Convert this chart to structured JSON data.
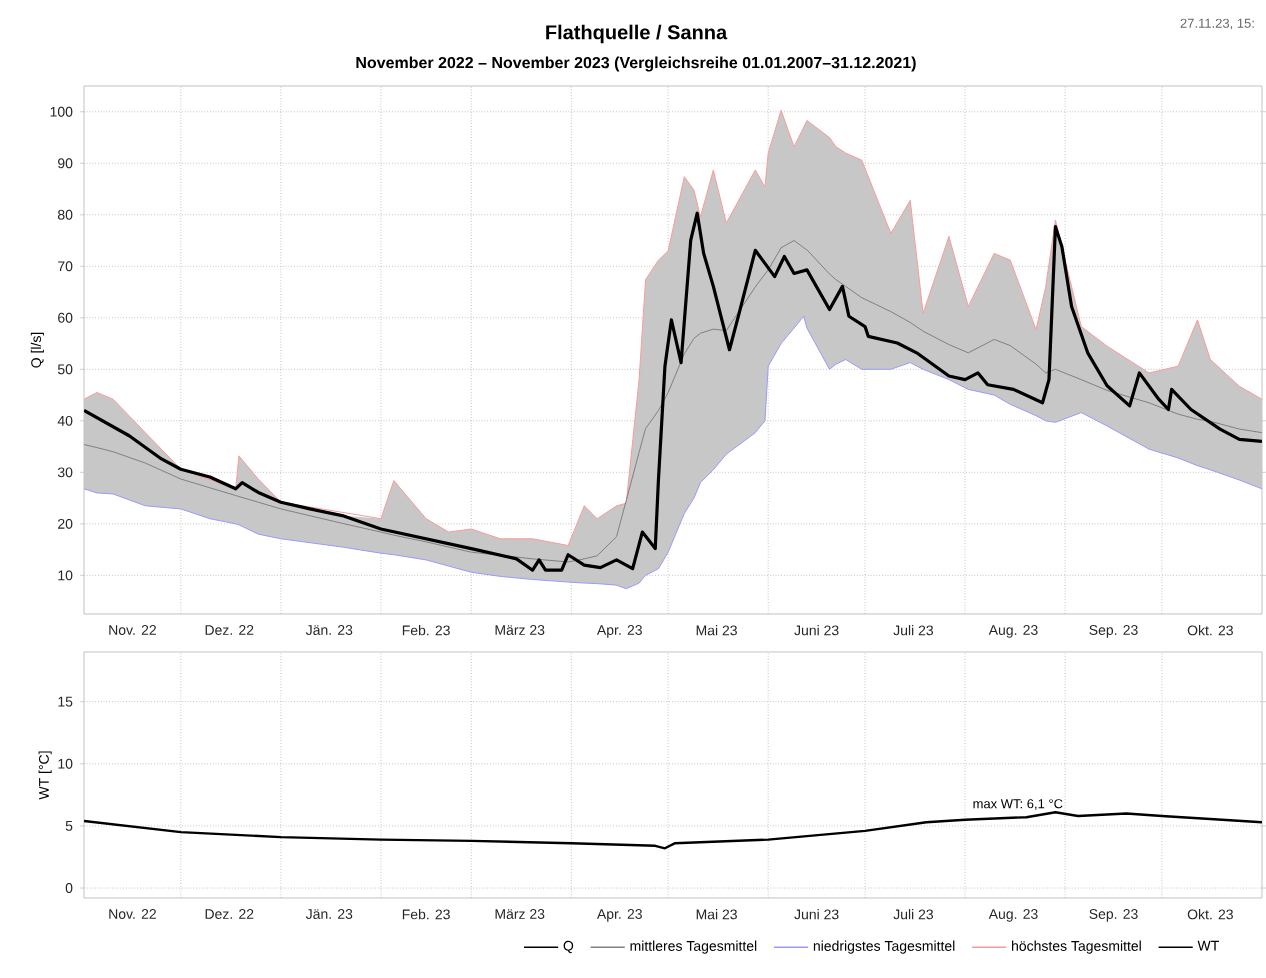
{
  "chart_data": [
    {
      "type": "line",
      "title": "Flathquelle / Sanna",
      "subtitle": "November 2022 – November 2023 (Vergleichsreihe 01.01.2007–31.12.2021)",
      "ylabel": "Q [l/s]",
      "annotations": [
        "27.11.23, 15:"
      ],
      "xlim": [
        "2022-11-01",
        "2023-11-01"
      ],
      "xticks": [
        {
          "value": "2022-11-16",
          "label": "Nov. 22"
        },
        {
          "value": "2022-12-01",
          "label": null
        },
        {
          "value": "2022-12-16",
          "label": "Dez. 22"
        },
        {
          "value": "2023-01-01",
          "label": null
        },
        {
          "value": "2023-01-16",
          "label": "Jän. 23"
        },
        {
          "value": "2023-02-01",
          "label": null
        },
        {
          "value": "2023-02-15",
          "label": "Feb. 23"
        },
        {
          "value": "2023-03-01",
          "label": null
        },
        {
          "value": "2023-03-16",
          "label": "März 23"
        },
        {
          "value": "2023-04-01",
          "label": null
        },
        {
          "value": "2023-04-16",
          "label": "Apr. 23"
        },
        {
          "value": "2023-05-01",
          "label": null
        },
        {
          "value": "2023-05-16",
          "label": "Mai 23"
        },
        {
          "value": "2023-06-01",
          "label": null
        },
        {
          "value": "2023-06-16",
          "label": "Juni 23"
        },
        {
          "value": "2023-07-01",
          "label": null
        },
        {
          "value": "2023-07-16",
          "label": "Juli 23"
        },
        {
          "value": "2023-08-01",
          "label": null
        },
        {
          "value": "2023-08-16",
          "label": "Aug. 23"
        },
        {
          "value": "2023-09-01",
          "label": null
        },
        {
          "value": "2023-09-16",
          "label": "Sep. 23"
        },
        {
          "value": "2023-10-01",
          "label": null
        },
        {
          "value": "2023-10-16",
          "label": "Okt. 23"
        }
      ],
      "ylim": [
        2.5,
        105
      ],
      "yticks": [
        10,
        20,
        30,
        40,
        50,
        60,
        70,
        80,
        90,
        100
      ],
      "grid": true,
      "legend": "bottom",
      "series": [
        {
          "name": "Q",
          "color": "#000000",
          "x": [
            "2022-11-01",
            "2022-11-15",
            "2022-11-25",
            "2022-12-01",
            "2022-12-10",
            "2022-12-18",
            "2022-12-20",
            "2022-12-25",
            "2023-01-01",
            "2023-01-10",
            "2023-01-20",
            "2023-02-01",
            "2023-02-15",
            "2023-03-01",
            "2023-03-15",
            "2023-03-20",
            "2023-03-22",
            "2023-03-24",
            "2023-03-29",
            "2023-03-31",
            "2023-04-05",
            "2023-04-10",
            "2023-04-15",
            "2023-04-20",
            "2023-04-23",
            "2023-04-27",
            "2023-04-28",
            "2023-04-30",
            "2023-05-02",
            "2023-05-05",
            "2023-05-08",
            "2023-05-10",
            "2023-05-12",
            "2023-05-15",
            "2023-05-20",
            "2023-05-23",
            "2023-05-28",
            "2023-06-03",
            "2023-06-06",
            "2023-06-09",
            "2023-06-13",
            "2023-06-20",
            "2023-06-24",
            "2023-06-26",
            "2023-07-01",
            "2023-07-02",
            "2023-07-11",
            "2023-07-17",
            "2023-07-27",
            "2023-08-01",
            "2023-08-05",
            "2023-08-08",
            "2023-08-16",
            "2023-08-25",
            "2023-08-27",
            "2023-08-29",
            "2023-08-31",
            "2023-09-03",
            "2023-09-08",
            "2023-09-14",
            "2023-09-21",
            "2023-09-24",
            "2023-09-30",
            "2023-10-03",
            "2023-10-04",
            "2023-10-10",
            "2023-10-19",
            "2023-10-25",
            "2023-11-01"
          ],
          "values": [
            42.0,
            37.1,
            32.6,
            30.6,
            29.1,
            26.8,
            28.0,
            26.1,
            24.2,
            22.9,
            21.6,
            19.0,
            17.1,
            15.2,
            13.2,
            11.0,
            13.0,
            11.0,
            11.0,
            14.0,
            12.0,
            11.5,
            13.0,
            11.3,
            18.4,
            15.2,
            28.7,
            50.6,
            59.6,
            51.3,
            75.1,
            80.3,
            72.5,
            66.1,
            53.8,
            60.9,
            73.1,
            68.0,
            71.9,
            68.6,
            69.3,
            61.6,
            66.1,
            60.3,
            58.3,
            56.4,
            55.1,
            53.2,
            48.7,
            48.0,
            49.3,
            47.0,
            46.1,
            43.5,
            48.0,
            77.7,
            73.8,
            62.2,
            53.2,
            46.8,
            42.9,
            49.3,
            44.2,
            42.2,
            46.1,
            42.2,
            38.4,
            36.4,
            36.0
          ]
        },
        {
          "name": "mittleres Tagesmittel",
          "color": "#808080",
          "x": [
            "2022-11-01",
            "2022-11-05",
            "2022-11-10",
            "2022-11-20",
            "2022-12-01",
            "2022-12-10",
            "2022-12-18",
            "2022-12-19",
            "2022-12-25",
            "2023-01-01",
            "2023-01-20",
            "2023-02-01",
            "2023-02-05",
            "2023-02-15",
            "2023-02-22",
            "2023-03-01",
            "2023-03-10",
            "2023-03-20",
            "2023-03-31",
            "2023-04-05",
            "2023-04-09",
            "2023-04-15",
            "2023-04-18",
            "2023-04-22",
            "2023-04-24",
            "2023-04-28",
            "2023-05-01",
            "2023-05-06",
            "2023-05-09",
            "2023-05-11",
            "2023-05-15",
            "2023-05-19",
            "2023-05-28",
            "2023-05-31",
            "2023-06-01",
            "2023-06-05",
            "2023-06-09",
            "2023-06-12",
            "2023-06-13",
            "2023-06-20",
            "2023-06-22",
            "2023-06-25",
            "2023-06-30",
            "2023-07-09",
            "2023-07-15",
            "2023-07-19",
            "2023-07-27",
            "2023-08-02",
            "2023-08-10",
            "2023-08-15",
            "2023-08-23",
            "2023-08-26",
            "2023-08-29",
            "2023-09-06",
            "2023-09-14",
            "2023-09-27",
            "2023-10-06",
            "2023-10-12",
            "2023-10-16",
            "2023-10-25",
            "2023-11-01"
          ],
          "values": [
            35.4,
            34.8,
            34.0,
            31.8,
            28.7,
            27.0,
            25.5,
            25.3,
            24.2,
            22.9,
            20.1,
            18.4,
            17.8,
            16.5,
            15.5,
            14.5,
            13.9,
            13.2,
            12.6,
            13.2,
            13.8,
            17.5,
            24.5,
            33.9,
            38.5,
            42.0,
            45.5,
            53.0,
            56.0,
            57.0,
            57.8,
            57.5,
            66.0,
            68.5,
            69.3,
            73.6,
            75.0,
            73.6,
            73.2,
            68.5,
            67.4,
            66.1,
            63.9,
            61.2,
            59.1,
            57.4,
            54.8,
            53.2,
            55.8,
            54.6,
            51.0,
            49.3,
            50.0,
            48.0,
            45.9,
            43.5,
            41.3,
            40.3,
            39.9,
            38.4,
            37.7
          ],
          "lower": [
            26.8,
            26.0,
            25.8,
            23.5,
            22.9,
            21.0,
            20.0,
            19.8,
            18.0,
            17.1,
            15.5,
            14.3,
            14.0,
            13.0,
            11.8,
            10.6,
            9.8,
            9.2,
            8.7,
            8.5,
            8.4,
            8.1,
            7.4,
            8.5,
            10.0,
            11.3,
            14.5,
            22.0,
            25.0,
            28.0,
            30.5,
            33.5,
            37.7,
            40.0,
            50.6,
            55.0,
            58.0,
            60.3,
            58.0,
            50.0,
            51.0,
            51.9,
            50.0,
            50.0,
            51.3,
            50.0,
            48.0,
            46.1,
            45.0,
            43.2,
            41.0,
            40.0,
            39.7,
            41.6,
            39.0,
            34.5,
            32.8,
            31.3,
            30.5,
            28.5,
            26.8
          ],
          "upper": [
            44.2,
            45.5,
            44.2,
            37.7,
            30.6,
            29.0,
            26.8,
            33.2,
            28.7,
            24.2,
            21.6,
            21.0,
            28.4,
            21.0,
            18.4,
            19.0,
            17.1,
            17.1,
            15.8,
            23.5,
            21.0,
            23.5,
            24.0,
            48.0,
            67.4,
            71.2,
            73.0,
            87.4,
            84.8,
            79.6,
            88.7,
            78.4,
            88.7,
            85.4,
            92.0,
            100.3,
            93.2,
            97.0,
            98.3,
            95.0,
            93.2,
            92.0,
            90.6,
            76.4,
            82.8,
            60.9,
            75.8,
            62.2,
            72.5,
            71.2,
            57.7,
            66.1,
            79.0,
            58.3,
            54.5,
            49.3,
            50.6,
            59.6,
            51.9,
            46.7,
            44.2
          ]
        },
        {
          "name": "niedrigstes Tagesmittel",
          "color": "#9999ff",
          "x": [
            "2022-11-01",
            "2022-11-05",
            "2022-11-10",
            "2022-11-20",
            "2022-12-01",
            "2022-12-10",
            "2022-12-18",
            "2022-12-19",
            "2022-12-25",
            "2023-01-01",
            "2023-01-20",
            "2023-02-01",
            "2023-02-05",
            "2023-02-15",
            "2023-02-22",
            "2023-03-01",
            "2023-03-10",
            "2023-03-20",
            "2023-03-31",
            "2023-04-05",
            "2023-04-09",
            "2023-04-15",
            "2023-04-18",
            "2023-04-22",
            "2023-04-24",
            "2023-04-28",
            "2023-05-01",
            "2023-05-06",
            "2023-05-09",
            "2023-05-11",
            "2023-05-15",
            "2023-05-19",
            "2023-05-28",
            "2023-05-31",
            "2023-06-01",
            "2023-06-05",
            "2023-06-09",
            "2023-06-12",
            "2023-06-13",
            "2023-06-20",
            "2023-06-22",
            "2023-06-25",
            "2023-06-30",
            "2023-07-09",
            "2023-07-15",
            "2023-07-19",
            "2023-07-27",
            "2023-08-02",
            "2023-08-10",
            "2023-08-15",
            "2023-08-23",
            "2023-08-26",
            "2023-08-29",
            "2023-09-06",
            "2023-09-14",
            "2023-09-27",
            "2023-10-06",
            "2023-10-12",
            "2023-10-16",
            "2023-10-25",
            "2023-11-01"
          ],
          "values": [
            26.8,
            26.0,
            25.8,
            23.5,
            22.9,
            21.0,
            20.0,
            19.8,
            18.0,
            17.1,
            15.5,
            14.3,
            14.0,
            13.0,
            11.8,
            10.6,
            9.8,
            9.2,
            8.7,
            8.5,
            8.4,
            8.1,
            7.4,
            8.5,
            10.0,
            11.3,
            14.5,
            22.0,
            25.0,
            28.0,
            30.5,
            33.5,
            37.7,
            40.0,
            50.6,
            55.0,
            58.0,
            60.3,
            58.0,
            50.0,
            51.0,
            51.9,
            50.0,
            50.0,
            51.3,
            50.0,
            48.0,
            46.1,
            45.0,
            43.2,
            41.0,
            40.0,
            39.7,
            41.6,
            39.0,
            34.5,
            32.8,
            31.3,
            30.5,
            28.5,
            26.8
          ]
        },
        {
          "name": "höchstes Tagesmittel",
          "color": "#ff9999",
          "x": [
            "2022-11-01",
            "2022-11-05",
            "2022-11-10",
            "2022-11-20",
            "2022-12-01",
            "2022-12-10",
            "2022-12-18",
            "2022-12-19",
            "2022-12-25",
            "2023-01-01",
            "2023-01-20",
            "2023-02-01",
            "2023-02-05",
            "2023-02-15",
            "2023-02-22",
            "2023-03-01",
            "2023-03-10",
            "2023-03-20",
            "2023-03-31",
            "2023-04-05",
            "2023-04-09",
            "2023-04-15",
            "2023-04-18",
            "2023-04-22",
            "2023-04-24",
            "2023-04-28",
            "2023-05-01",
            "2023-05-06",
            "2023-05-09",
            "2023-05-11",
            "2023-05-15",
            "2023-05-19",
            "2023-05-28",
            "2023-05-31",
            "2023-06-01",
            "2023-06-05",
            "2023-06-09",
            "2023-06-12",
            "2023-06-13",
            "2023-06-20",
            "2023-06-22",
            "2023-06-25",
            "2023-06-30",
            "2023-07-09",
            "2023-07-15",
            "2023-07-19",
            "2023-07-27",
            "2023-08-02",
            "2023-08-10",
            "2023-08-15",
            "2023-08-23",
            "2023-08-26",
            "2023-08-29",
            "2023-09-06",
            "2023-09-14",
            "2023-09-27",
            "2023-10-06",
            "2023-10-12",
            "2023-10-16",
            "2023-10-25",
            "2023-11-01"
          ],
          "values": [
            44.2,
            45.5,
            44.2,
            37.7,
            30.6,
            null,
            26.8,
            33.2,
            28.7,
            24.2,
            null,
            21.0,
            28.4,
            21.0,
            18.4,
            19.0,
            17.1,
            17.1,
            15.8,
            23.5,
            21.0,
            23.5,
            24.0,
            48.0,
            67.4,
            71.2,
            73.0,
            87.4,
            84.8,
            79.6,
            88.7,
            78.4,
            88.7,
            85.4,
            92.0,
            100.3,
            93.2,
            97.0,
            98.3,
            95.0,
            93.2,
            92.0,
            90.6,
            76.4,
            82.8,
            60.9,
            75.8,
            62.2,
            72.5,
            71.2,
            57.7,
            66.1,
            79.0,
            58.3,
            54.5,
            49.3,
            50.6,
            59.6,
            51.9,
            46.7,
            44.2
          ]
        }
      ]
    },
    {
      "type": "line",
      "ylabel": "WT [°C]",
      "annotations": [
        {
          "text": "max WT: 6,1 °C",
          "x": "2023-08-29",
          "y": 6.1
        }
      ],
      "xlim": [
        "2022-11-01",
        "2023-11-01"
      ],
      "xticks": [
        {
          "value": "2022-11-16",
          "label": "Nov. 22"
        },
        {
          "value": "2022-12-01",
          "label": null
        },
        {
          "value": "2022-12-16",
          "label": "Dez. 22"
        },
        {
          "value": "2023-01-01",
          "label": null
        },
        {
          "value": "2023-01-16",
          "label": "Jän. 23"
        },
        {
          "value": "2023-02-01",
          "label": null
        },
        {
          "value": "2023-02-15",
          "label": "Feb. 23"
        },
        {
          "value": "2023-03-01",
          "label": null
        },
        {
          "value": "2023-03-16",
          "label": "März 23"
        },
        {
          "value": "2023-04-01",
          "label": null
        },
        {
          "value": "2023-04-16",
          "label": "Apr. 23"
        },
        {
          "value": "2023-05-01",
          "label": null
        },
        {
          "value": "2023-05-16",
          "label": "Mai 23"
        },
        {
          "value": "2023-06-01",
          "label": null
        },
        {
          "value": "2023-06-16",
          "label": "Juni 23"
        },
        {
          "value": "2023-07-01",
          "label": null
        },
        {
          "value": "2023-07-16",
          "label": "Juli 23"
        },
        {
          "value": "2023-08-01",
          "label": null
        },
        {
          "value": "2023-08-16",
          "label": "Aug. 23"
        },
        {
          "value": "2023-09-01",
          "label": null
        },
        {
          "value": "2023-09-16",
          "label": "Sep. 23"
        },
        {
          "value": "2023-10-01",
          "label": null
        },
        {
          "value": "2023-10-16",
          "label": "Okt. 23"
        }
      ],
      "ylim": [
        -0.8,
        19
      ],
      "yticks": [
        0,
        5,
        10,
        15
      ],
      "grid": true,
      "legend": "bottom",
      "series": [
        {
          "name": "WT",
          "color": "#000000",
          "x": [
            "2022-11-01",
            "2022-12-01",
            "2023-01-01",
            "2023-02-01",
            "2023-03-01",
            "2023-04-01",
            "2023-04-27",
            "2023-04-30",
            "2023-05-03",
            "2023-06-01",
            "2023-07-01",
            "2023-07-20",
            "2023-08-01",
            "2023-08-20",
            "2023-08-29",
            "2023-09-05",
            "2023-09-20",
            "2023-10-01",
            "2023-11-01"
          ],
          "values": [
            5.4,
            4.5,
            4.1,
            3.9,
            3.8,
            3.6,
            3.4,
            3.2,
            3.6,
            3.9,
            4.6,
            5.3,
            5.5,
            5.7,
            6.1,
            5.8,
            6.0,
            5.8,
            5.3
          ]
        }
      ]
    }
  ]
}
